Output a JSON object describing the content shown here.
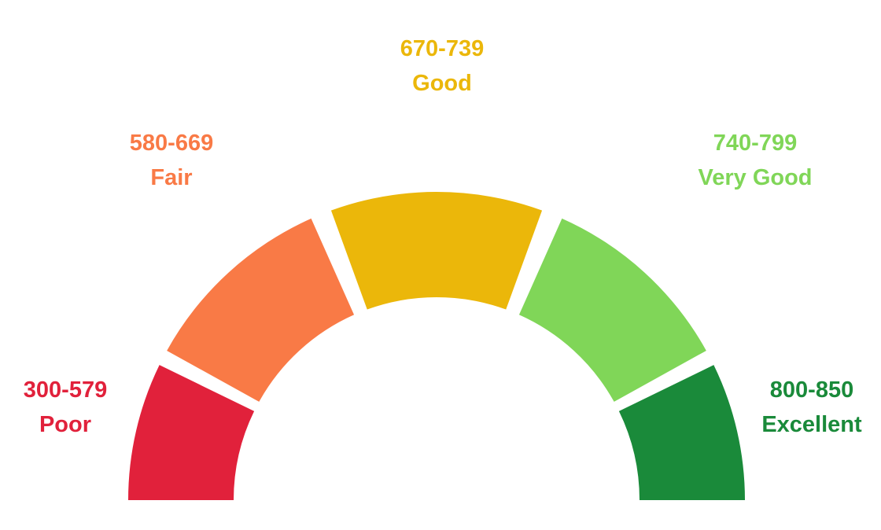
{
  "gauge": {
    "bands": [
      {
        "key": "poor",
        "range": "300-579",
        "rating": "Poor",
        "color": "#e1213b"
      },
      {
        "key": "fair",
        "range": "580-669",
        "rating": "Fair",
        "color": "#f97a46"
      },
      {
        "key": "good",
        "range": "670-739",
        "rating": "Good",
        "color": "#ebb70a"
      },
      {
        "key": "very_good",
        "range": "740-799",
        "rating": "Very Good",
        "color": "#80d658"
      },
      {
        "key": "excellent",
        "range": "800-850",
        "rating": "Excellent",
        "color": "#1a8a3a"
      }
    ]
  }
}
